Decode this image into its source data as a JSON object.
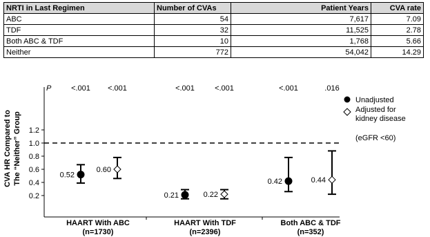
{
  "table": {
    "headers": [
      "NRTI in Last Regimen",
      "Number of CVAs",
      "Patient Years",
      "CVA rate"
    ],
    "rows": [
      [
        "ABC",
        "54",
        "7,617",
        "7.09"
      ],
      [
        "TDF",
        "32",
        "11,525",
        "2.78"
      ],
      [
        "Both ABC & TDF",
        "10",
        "1,768",
        "5.66"
      ],
      [
        "Neither",
        "772",
        "54,042",
        "14.29"
      ]
    ]
  },
  "chart_data": {
    "type": "scatter",
    "ylabel_line1": "CVA HR Compared to",
    "ylabel_line2": "The “Neither” Group",
    "ylim": [
      0.1,
      1.2
    ],
    "y_ticks": [
      "0.2",
      "0.4",
      "0.6",
      "0.8",
      "1.0",
      "1.2"
    ],
    "y_tick_values": [
      0.2,
      0.4,
      0.6,
      0.8,
      1.0,
      1.2
    ],
    "reference_line": 1.0,
    "p_label": "P",
    "groups": [
      {
        "label": "HAART With ABC",
        "n": "(n=1730)",
        "points": [
          {
            "series": "unadjusted",
            "value": 0.52,
            "label": "0.52",
            "ci": [
              0.39,
              0.67
            ],
            "p": "<.001"
          },
          {
            "series": "adjusted",
            "value": 0.6,
            "label": "0.60",
            "ci": [
              0.46,
              0.78
            ],
            "p": "<.001"
          }
        ]
      },
      {
        "label": "HAART With TDF",
        "n": "(n=2396)",
        "points": [
          {
            "series": "unadjusted",
            "value": 0.21,
            "label": "0.21",
            "ci": [
              0.15,
              0.29
            ],
            "p": "<.001"
          },
          {
            "series": "adjusted",
            "value": 0.22,
            "label": "0.22",
            "ci": [
              0.15,
              0.29
            ],
            "p": "<.001"
          }
        ]
      },
      {
        "label": "Both ABC & TDF",
        "n": "(n=352)",
        "points": [
          {
            "series": "unadjusted",
            "value": 0.42,
            "label": "0.42",
            "ci": [
              0.26,
              0.78
            ],
            "p": "<.001"
          },
          {
            "series": "adjusted",
            "value": 0.44,
            "label": "0.44",
            "ci": [
              0.22,
              0.88
            ],
            "p": ".016"
          }
        ]
      }
    ],
    "legend": {
      "placement": "right",
      "unadjusted": "Unadjusted",
      "adjusted_line1": "Adjusted for",
      "adjusted_line2": "kidney disease",
      "note": "(eGFR <60)"
    },
    "colors": {
      "unadjusted_marker": "#000000",
      "adjusted_marker": "#ffffff",
      "header_fill": "#d9d9d9"
    }
  }
}
